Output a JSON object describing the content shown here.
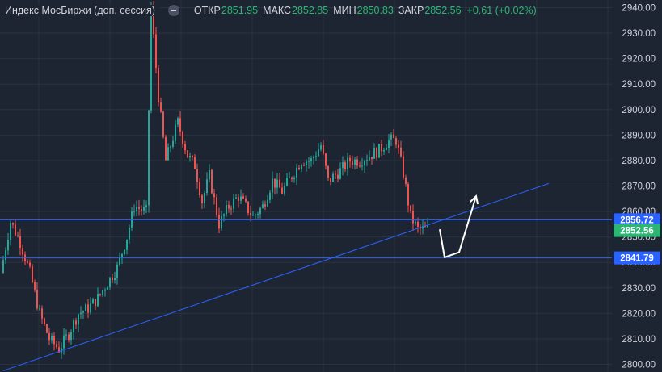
{
  "legend": {
    "title": "Индекс МосБиржи (доп. сессия)",
    "open_label": "ОТКР",
    "open_value": "2851.95",
    "high_label": "МАКС",
    "high_value": "2852.85",
    "low_label": "МИН",
    "low_value": "2850.83",
    "close_label": "ЗАКР",
    "close_value": "2852.56",
    "change": "+0.61 (+0.02%)"
  },
  "colors": {
    "background": "#1e2532",
    "up": "#26a69a",
    "down": "#ef5350",
    "line": "#2962ff",
    "price_badge_blue": "#2962ff",
    "price_badge_green": "#2bb673",
    "forecast": "#ffffff"
  },
  "chart_data": {
    "type": "candlestick",
    "ylim": [
      2797,
      2943
    ],
    "y_ticks": [
      "2800.00",
      "2810.00",
      "2820.00",
      "2830.00",
      "2840.00",
      "2850.00",
      "2860.00",
      "2870.00",
      "2880.00",
      "2890.00",
      "2900.00",
      "2910.00",
      "2920.00",
      "2930.00",
      "2940.00"
    ],
    "y_values": [
      2800,
      2810,
      2820,
      2830,
      2840,
      2850,
      2860,
      2870,
      2880,
      2890,
      2900,
      2910,
      2920,
      2930,
      2940
    ],
    "grid": true,
    "horizontal_levels": [
      {
        "value": 2856.72,
        "label": "2856.72"
      },
      {
        "value": 2841.79,
        "label": "2841.79"
      }
    ],
    "last_price": {
      "value": 2852.56,
      "label": "2852.56"
    },
    "candle_count": 180,
    "price_anchors": [
      [
        0,
        2836
      ],
      [
        4,
        2856
      ],
      [
        8,
        2848
      ],
      [
        12,
        2836
      ],
      [
        16,
        2820
      ],
      [
        20,
        2810
      ],
      [
        24,
        2806
      ],
      [
        28,
        2812
      ],
      [
        32,
        2820
      ],
      [
        36,
        2822
      ],
      [
        40,
        2826
      ],
      [
        44,
        2832
      ],
      [
        48,
        2838
      ],
      [
        52,
        2850
      ],
      [
        55,
        2862
      ],
      [
        60,
        2860
      ],
      [
        62,
        2940
      ],
      [
        65,
        2905
      ],
      [
        68,
        2880
      ],
      [
        73,
        2895
      ],
      [
        77,
        2882
      ],
      [
        80,
        2878
      ],
      [
        83,
        2864
      ],
      [
        86,
        2874
      ],
      [
        90,
        2855
      ],
      [
        94,
        2862
      ],
      [
        98,
        2866
      ],
      [
        104,
        2858
      ],
      [
        108,
        2862
      ],
      [
        112,
        2872
      ],
      [
        116,
        2868
      ],
      [
        120,
        2874
      ],
      [
        124,
        2880
      ],
      [
        128,
        2880
      ],
      [
        132,
        2886
      ],
      [
        135,
        2872
      ],
      [
        140,
        2876
      ],
      [
        144,
        2880
      ],
      [
        148,
        2880
      ],
      [
        152,
        2882
      ],
      [
        156,
        2884
      ],
      [
        160,
        2888
      ],
      [
        163,
        2888
      ],
      [
        166,
        2875
      ],
      [
        169,
        2858
      ],
      [
        172,
        2853
      ],
      [
        175,
        2853
      ]
    ],
    "trendline": {
      "from": [
        0,
        2797.5
      ],
      "to": [
        225,
        2871
      ]
    },
    "forecast_path": [
      [
        180,
        2853
      ],
      [
        182,
        2842
      ],
      [
        188,
        2844
      ],
      [
        195,
        2866
      ]
    ]
  }
}
